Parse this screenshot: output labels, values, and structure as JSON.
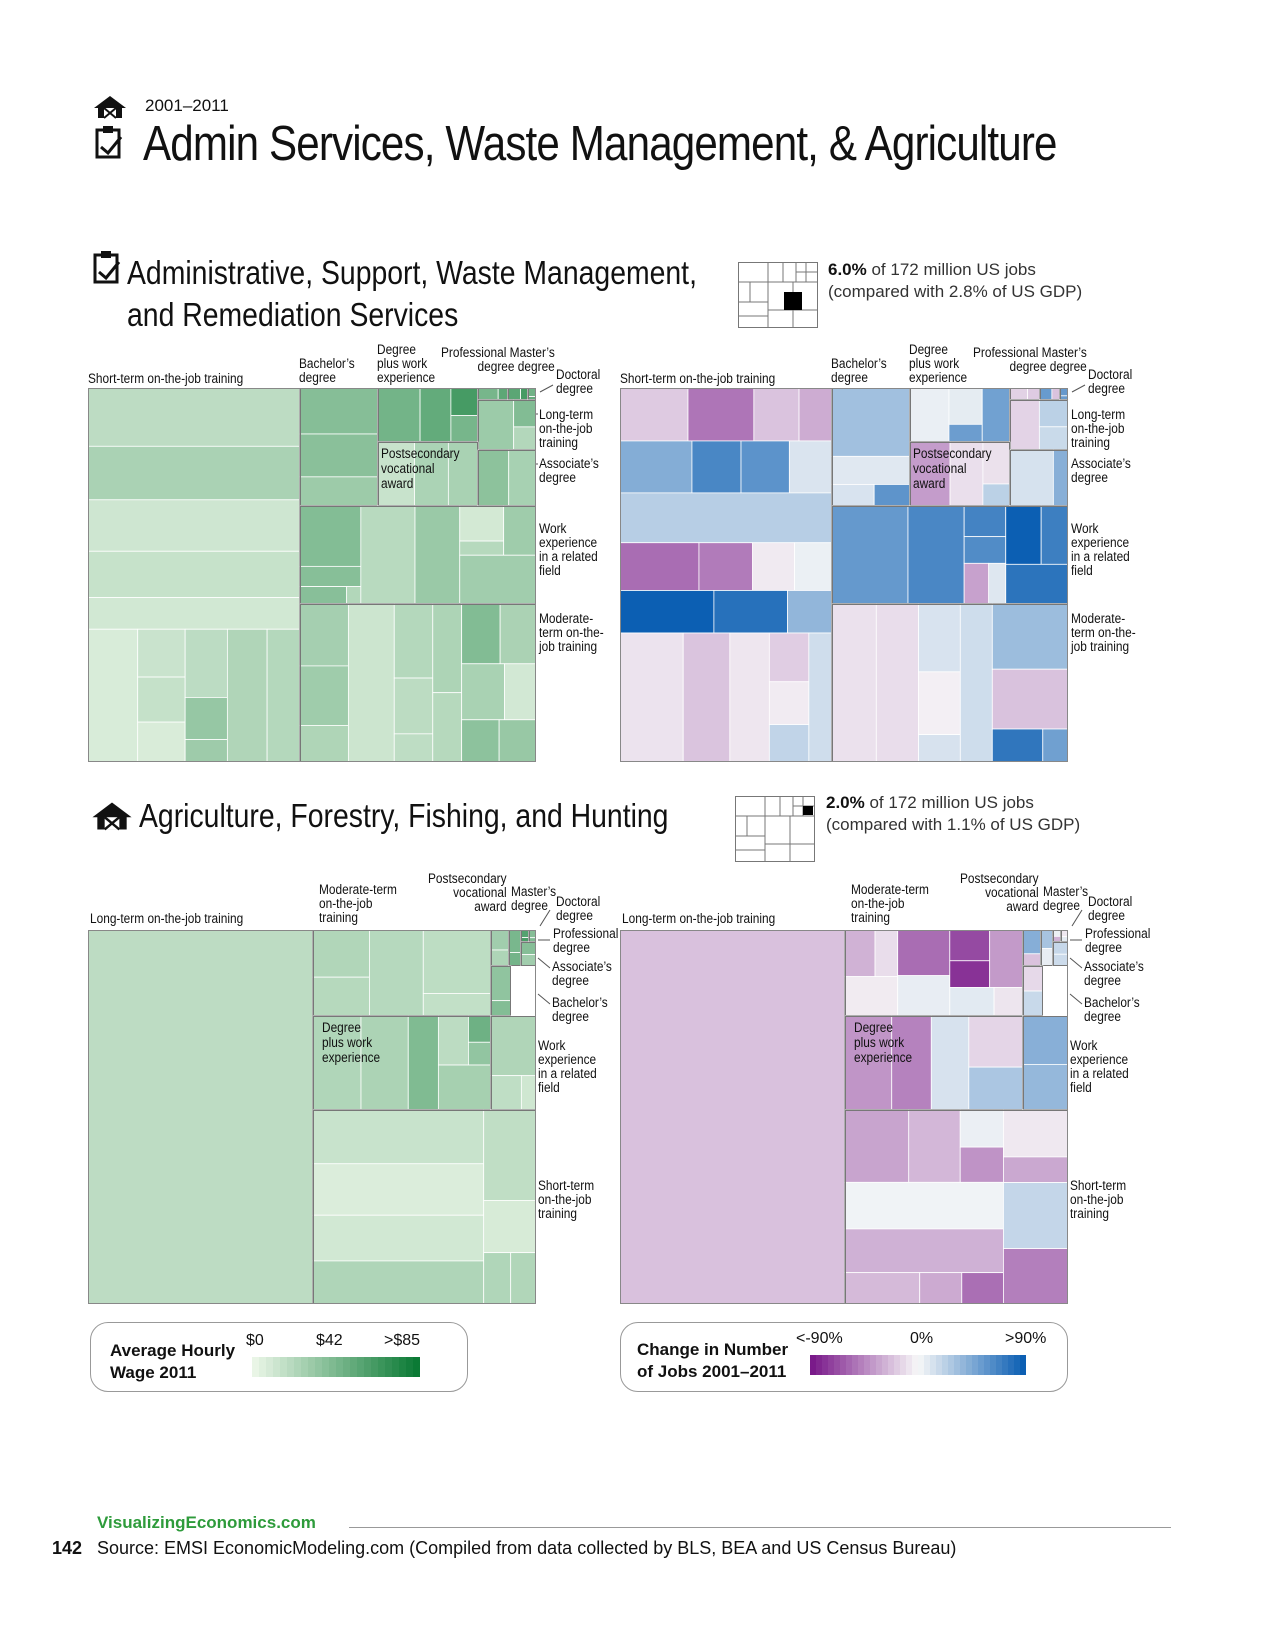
{
  "header": {
    "years": "2001–2011",
    "title": "Admin Services, Waste Management, & Agriculture"
  },
  "sections": [
    {
      "title_line1": "Administrative, Support, Waste Management,",
      "title_line2": "and Remediation Services",
      "share_pct": "6.0%",
      "share_text": " of 172 million US jobs",
      "gdp_text": "(compared with 2.8% of US GDP)"
    },
    {
      "title_line1": "Agriculture, Forestry, Fishing, and Hunting",
      "title_line2": "",
      "share_pct": "2.0%",
      "share_text": " of 172 million US jobs",
      "gdp_text": "(compared with 1.1% of US GDP)"
    }
  ],
  "colors": {
    "wage_low": "#e9f5e6",
    "wage_high": "#0b7a35",
    "change_neg": "#7a1a8a",
    "change_mid": "#f8f8f8",
    "change_pos": "#0c5fb3",
    "border": "#8a8a8a"
  },
  "icons": [
    "barn-icon",
    "clipboard-icon"
  ],
  "chart_data": [
    {
      "type": "treemap",
      "panel": "Administrative, Support, Waste Management, and Remediation Services — Average Hourly Wage 2011",
      "color_metric": "wage",
      "groups": [
        {
          "label": "Short-term on-the-job training",
          "share": 0.473,
          "value": 0.12
        },
        {
          "label": "Bachelor’s degree",
          "share": 0.058,
          "value": 0.3
        },
        {
          "label": "Degree plus work experience",
          "share": 0.03,
          "value": 0.55
        },
        {
          "label": "Professional degree",
          "share": 0.004,
          "value": 0.5
        },
        {
          "label": "Master’s degree",
          "share": 0.004,
          "value": 0.6
        },
        {
          "label": "Doctoral degree",
          "share": 0.003,
          "value": 0.6
        },
        {
          "label": "Long-term on-the-job training",
          "share": 0.022,
          "value": 0.25
        },
        {
          "label": "Postsecondary vocational award",
          "share": 0.02,
          "value": 0.2
        },
        {
          "label": "Associate’s degree",
          "share": 0.022,
          "value": 0.35
        },
        {
          "label": "Work experience in a related field",
          "share": 0.13,
          "value": 0.2
        },
        {
          "label": "Moderate-term on-the-job training",
          "share": 0.234,
          "value": 0.15
        }
      ]
    },
    {
      "type": "treemap",
      "panel": "Administrative, Support, Waste Management, and Remediation Services — Change in Number of Jobs 2001–2011",
      "color_metric": "change",
      "groups": [
        {
          "label": "Short-term on-the-job training",
          "share": 0.473,
          "value": 0.2
        },
        {
          "label": "Bachelor’s degree",
          "share": 0.058,
          "value": 0.1
        },
        {
          "label": "Degree plus work experience",
          "share": 0.03,
          "value": 0.15
        },
        {
          "label": "Professional degree",
          "share": 0.004,
          "value": 0.1
        },
        {
          "label": "Master’s degree",
          "share": 0.004,
          "value": 0.2
        },
        {
          "label": "Doctoral degree",
          "share": 0.003,
          "value": 0.2
        },
        {
          "label": "Long-term on-the-job training",
          "share": 0.022,
          "value": 0.05
        },
        {
          "label": "Postsecondary vocational award",
          "share": 0.02,
          "value": -0.45
        },
        {
          "label": "Associate’s degree",
          "share": 0.022,
          "value": 0.05
        },
        {
          "label": "Work experience in a related field",
          "share": 0.13,
          "value": 0.7
        },
        {
          "label": "Moderate-term on-the-job training",
          "share": 0.234,
          "value": 0.1
        }
      ]
    },
    {
      "type": "treemap",
      "panel": "Agriculture, Forestry, Fishing, and Hunting — Average Hourly Wage 2011",
      "color_metric": "wage",
      "groups": [
        {
          "label": "Long-term on-the-job training",
          "share": 0.495,
          "value": 0.2
        },
        {
          "label": "Moderate-term on-the-job training",
          "share": 0.095,
          "value": 0.15
        },
        {
          "label": "Postsecondary vocational award",
          "share": 0.004,
          "value": 0.25
        },
        {
          "label": "Master’s degree",
          "share": 0.004,
          "value": 0.5
        },
        {
          "label": "Doctoral degree",
          "share": 0.003,
          "value": 0.6
        },
        {
          "label": "Professional degree",
          "share": 0.003,
          "value": 0.5
        },
        {
          "label": "Associate’s degree",
          "share": 0.006,
          "value": 0.3
        },
        {
          "label": "Bachelor’s degree",
          "share": 0.008,
          "value": 0.35
        },
        {
          "label": "Degree plus work experience",
          "share": 0.085,
          "value": 0.32
        },
        {
          "label": "Work experience in a related field",
          "share": 0.022,
          "value": 0.2
        },
        {
          "label": "Short-term on-the-job training",
          "share": 0.21,
          "value": 0.12
        }
      ]
    },
    {
      "type": "treemap",
      "panel": "Agriculture, Forestry, Fishing, and Hunting — Change in Number of Jobs 2001–2011",
      "color_metric": "change",
      "groups": [
        {
          "label": "Long-term on-the-job training",
          "share": 0.495,
          "value": -0.25
        },
        {
          "label": "Moderate-term on-the-job training",
          "share": 0.095,
          "value": -0.1
        },
        {
          "label": "Postsecondary vocational award",
          "share": 0.004,
          "value": 0.1
        },
        {
          "label": "Master’s degree",
          "share": 0.004,
          "value": 0.1
        },
        {
          "label": "Doctoral degree",
          "share": 0.003,
          "value": 0.05
        },
        {
          "label": "Professional degree",
          "share": 0.003,
          "value": 0.05
        },
        {
          "label": "Associate’s degree",
          "share": 0.006,
          "value": -0.05
        },
        {
          "label": "Bachelor’s degree",
          "share": 0.008,
          "value": 0.05
        },
        {
          "label": "Degree plus work experience",
          "share": 0.085,
          "value": -0.1
        },
        {
          "label": "Work experience in a related field",
          "share": 0.022,
          "value": 0.05
        },
        {
          "label": "Short-term on-the-job training",
          "share": 0.21,
          "value": -0.1
        }
      ]
    }
  ],
  "labels": {
    "short_term": "Short-term on-the-job training",
    "bachelors": "Bachelor’s\ndegree",
    "degree_plus": "Degree\nplus work\nexperience",
    "professional_masters": "Professional Master’s\ndegree degree",
    "doctoral": "Doctoral\ndegree",
    "long_term": "Long-term\non-the-job\ntraining",
    "associates": "Associate’s\ndegree",
    "work_exp": "Work\nexperience\nin a related\nfield",
    "moderate": "Moderate-\nterm on-the-\njob training",
    "postsecondary_in": "Postsecondary\nvocational\naward",
    "ag_long_term": "Long-term on-the-job training",
    "ag_moderate": "Moderate-term\non-the-job\ntraining",
    "ag_postsecondary": "Postsecondary\nvocational\naward",
    "ag_masters": "Master’s\ndegree",
    "ag_doctoral": "Doctoral\ndegree",
    "ag_professional": "Professional\ndegree",
    "ag_associates": "Associate’s\ndegree",
    "ag_bachelors": "Bachelor’s\ndegree",
    "ag_degree_plus": "Degree\nplus work\nexperience",
    "ag_work_exp": "Work\nexperience\nin a related\nfield",
    "ag_short_term": "Short-term\non-the-job\ntraining"
  },
  "legend_wage": {
    "title_line1": "Average Hourly",
    "title_line2": "Wage 2011",
    "ticks": [
      "$0",
      "$42",
      ">$85"
    ]
  },
  "legend_change": {
    "title_line1": "Change in Number",
    "title_line2": "of Jobs 2001–2011",
    "ticks": [
      "<-90%",
      "0%",
      ">90%"
    ]
  },
  "footer": {
    "site_part1": "Visualizing",
    "site_part2": "Economics.com",
    "page_number": "142",
    "source": "Source: EMSI EconomicModeling.com (Compiled from data collected by BLS, BEA and US Census Bureau)"
  }
}
